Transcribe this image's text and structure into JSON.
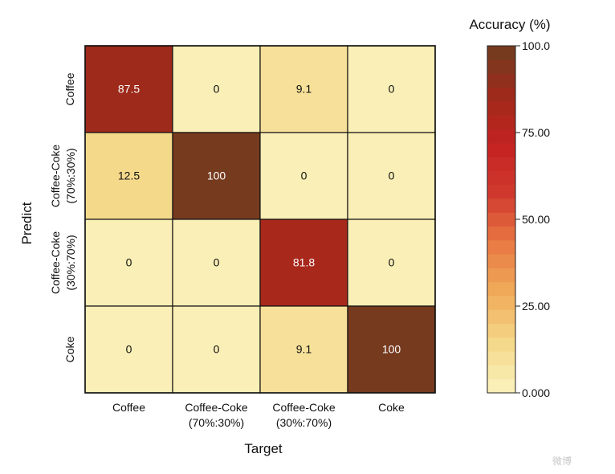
{
  "chart_data": {
    "type": "heatmap",
    "xlabel": "Target",
    "ylabel": "Predict",
    "x_categories": [
      [
        "Coffee"
      ],
      [
        "Coffee-Coke",
        "(70%:30%)"
      ],
      [
        "Coffee-Coke",
        "(30%:70%)"
      ],
      [
        "Coke"
      ]
    ],
    "y_categories": [
      [
        "Coffee"
      ],
      [
        "Coffee-Coke",
        "(70%:30%)"
      ],
      [
        "Coffee-Coke",
        "(30%:70%)"
      ],
      [
        "Coke"
      ]
    ],
    "values": [
      [
        87.5,
        0,
        9.1,
        0
      ],
      [
        12.5,
        100,
        0,
        0
      ],
      [
        0,
        0,
        81.8,
        0
      ],
      [
        0,
        0,
        9.1,
        100
      ]
    ],
    "cell_labels": [
      [
        "87.5",
        "0",
        "9.1",
        "0"
      ],
      [
        "12.5",
        "100",
        "0",
        "0"
      ],
      [
        "0",
        "0",
        "81.8",
        "0"
      ],
      [
        "0",
        "0",
        "9.1",
        "100"
      ]
    ],
    "colorbar": {
      "title": "Accuracy (%)",
      "range": [
        0,
        100
      ],
      "ticks": [
        0,
        25,
        50,
        75,
        100
      ],
      "tick_labels": [
        "0.000",
        "25.00",
        "50.00",
        "75.00",
        "100.0"
      ],
      "levels": 25,
      "colormap": "YlOrRd-to-brown",
      "color_stops": [
        "#fbf3bd",
        "#f5d88a",
        "#f0ac5a",
        "#e97a44",
        "#d03a2e",
        "#c42222",
        "#9e2a1a",
        "#6f3d20"
      ]
    }
  },
  "watermark": "微博"
}
